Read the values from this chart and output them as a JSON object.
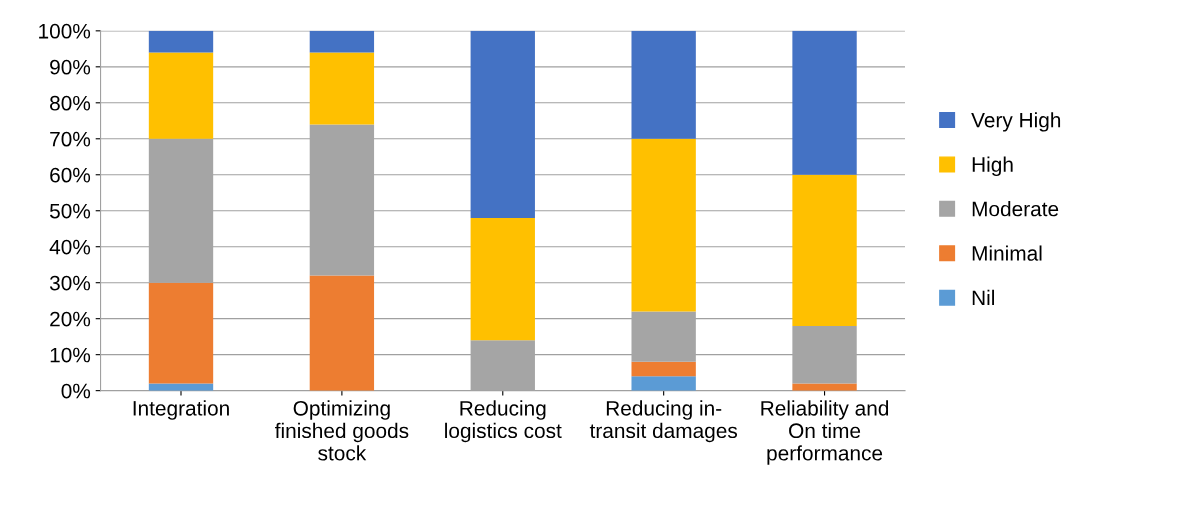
{
  "chart_data": {
    "type": "bar",
    "stacked": true,
    "categories": [
      "Integration",
      "Optimizing finished goods stock",
      "Reducing logistics cost",
      "Reducing in-transit damages",
      "Reliability and On time performance"
    ],
    "series": [
      {
        "name": "Nil",
        "color": "#5b9bd5",
        "values": [
          2,
          0,
          0,
          4,
          0
        ]
      },
      {
        "name": "Minimal",
        "color": "#ed7d31",
        "values": [
          28,
          32,
          0,
          4,
          2
        ]
      },
      {
        "name": "Moderate",
        "color": "#a5a5a5",
        "values": [
          40,
          42,
          14,
          14,
          16
        ]
      },
      {
        "name": "High",
        "color": "#ffc000",
        "values": [
          24,
          20,
          34,
          48,
          42
        ]
      },
      {
        "name": "Very High",
        "color": "#4472c4",
        "values": [
          6,
          6,
          52,
          30,
          40
        ]
      }
    ],
    "ylim": [
      0,
      100
    ],
    "yticks": [
      {
        "value": 0,
        "label": "0%"
      },
      {
        "value": 10,
        "label": "10%"
      },
      {
        "value": 20,
        "label": "20%"
      },
      {
        "value": 30,
        "label": "30%"
      },
      {
        "value": 40,
        "label": "40%"
      },
      {
        "value": 50,
        "label": "50%"
      },
      {
        "value": 60,
        "label": "60%"
      },
      {
        "value": 70,
        "label": "70%"
      },
      {
        "value": 80,
        "label": "80%"
      },
      {
        "value": 90,
        "label": "90%"
      },
      {
        "value": 100,
        "label": "100%"
      }
    ],
    "grid": "y",
    "legend": "right"
  }
}
